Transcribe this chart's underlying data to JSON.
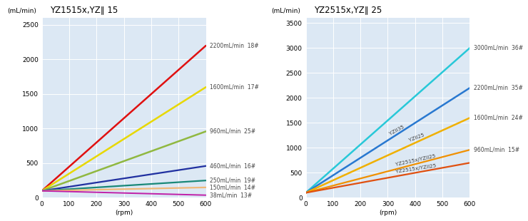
{
  "chart1": {
    "title": "YZ1515x,YZ∥ 15",
    "lines": [
      {
        "label": "2200mL/min  18#",
        "max_flow": 2200,
        "y0": 100,
        "color": "#e01010",
        "lw": 1.8
      },
      {
        "label": "1600mL/min  17#",
        "max_flow": 1600,
        "y0": 100,
        "color": "#e8d800",
        "lw": 1.8
      },
      {
        "label": "960mL/min  25#",
        "max_flow": 960,
        "y0": 100,
        "color": "#90b840",
        "lw": 1.8
      },
      {
        "label": "460mL/min  16#",
        "max_flow": 460,
        "y0": 100,
        "color": "#2030a0",
        "lw": 1.6
      },
      {
        "label": "250mL/min  19#",
        "max_flow": 250,
        "y0": 100,
        "color": "#1a8878",
        "lw": 1.6
      },
      {
        "label": "150mL/min  14#",
        "max_flow": 150,
        "y0": 100,
        "color": "#f0b878",
        "lw": 1.6
      },
      {
        "label": "38mL/min  13#",
        "max_flow": 38,
        "y0": 100,
        "color": "#c020a8",
        "lw": 1.4
      }
    ],
    "xlim": [
      0,
      600
    ],
    "ylim": [
      0,
      2600
    ],
    "yticks": [
      0,
      500,
      1000,
      1500,
      2000,
      2500
    ],
    "xticks": [
      0,
      100,
      200,
      300,
      400,
      500,
      600
    ],
    "xlabel": "(rpm)",
    "ylabel": "(mL/min)"
  },
  "chart2": {
    "title": "YZ2515x,YZ∥ 25",
    "lines": [
      {
        "label": "3000mL/min  36#",
        "mid_label": null,
        "max_flow": 3000,
        "y0": 100,
        "color": "#28c8d8",
        "lw": 1.8
      },
      {
        "label": "2200mL/min  35#",
        "mid_label": "YZII35",
        "max_flow": 2200,
        "y0": 100,
        "color": "#2878d0",
        "lw": 1.8
      },
      {
        "label": "1600mL/min  24#",
        "mid_label": "YZII25",
        "max_flow": 1600,
        "y0": 100,
        "color": "#f0b000",
        "lw": 1.8
      },
      {
        "label": "960mL/min  15#",
        "mid_label": "YZ2515x/YZII25",
        "max_flow": 960,
        "y0": 100,
        "color": "#f09000",
        "lw": 1.6
      },
      {
        "label": null,
        "mid_label": "YZ2515x/YZII25",
        "max_flow": 700,
        "y0": 100,
        "color": "#e05010",
        "lw": 1.6
      }
    ],
    "xlim": [
      0,
      600
    ],
    "ylim": [
      0,
      3600
    ],
    "yticks": [
      0,
      500,
      1000,
      1500,
      2000,
      2500,
      3000,
      3500
    ],
    "xticks": [
      0,
      100,
      200,
      300,
      400,
      500,
      600
    ],
    "xlabel": "(rpm)",
    "ylabel": "(mL/min)"
  },
  "fig_bg": "#ffffff",
  "plot_bg": "#dce8f4",
  "grid_color": "#ffffff",
  "label_fontsize": 5.5,
  "title_fontsize": 8.5,
  "tick_fontsize": 6.5
}
